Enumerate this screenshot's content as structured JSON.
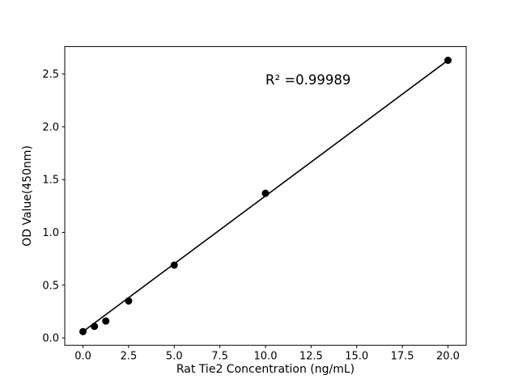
{
  "figure": {
    "background": "#ffffff"
  },
  "chart_data": {
    "type": "scatter",
    "title": "",
    "xlabel": "Rat Tie2 Concentration (ng/mL)",
    "ylabel": "OD Value(450nm)",
    "x": [
      0,
      0.625,
      1.25,
      2.5,
      5,
      10,
      20
    ],
    "y": [
      0.06,
      0.11,
      0.16,
      0.35,
      0.69,
      1.37,
      2.63
    ],
    "fit_line": {
      "x": [
        0,
        20
      ],
      "y": [
        0.06,
        2.63
      ]
    },
    "annotation": {
      "text": "R² =0.99989",
      "x": 10,
      "y": 2.4
    },
    "xlim": [
      -1,
      21
    ],
    "ylim": [
      -0.07,
      2.76
    ],
    "x_ticks": [
      0,
      2.5,
      5,
      7.5,
      10,
      12.5,
      15,
      17.5,
      20
    ],
    "x_tick_labels": [
      "0.0",
      "2.5",
      "5.0",
      "7.5",
      "10.0",
      "12.5",
      "15.0",
      "17.5",
      "20.0"
    ],
    "y_ticks": [
      0,
      0.5,
      1,
      1.5,
      2,
      2.5
    ],
    "y_tick_labels": [
      "0.0",
      "0.5",
      "1.0",
      "1.5",
      "2.0",
      "2.5"
    ],
    "line_color": "#000000",
    "marker_color": "#000000",
    "grid": false,
    "legend": null
  }
}
